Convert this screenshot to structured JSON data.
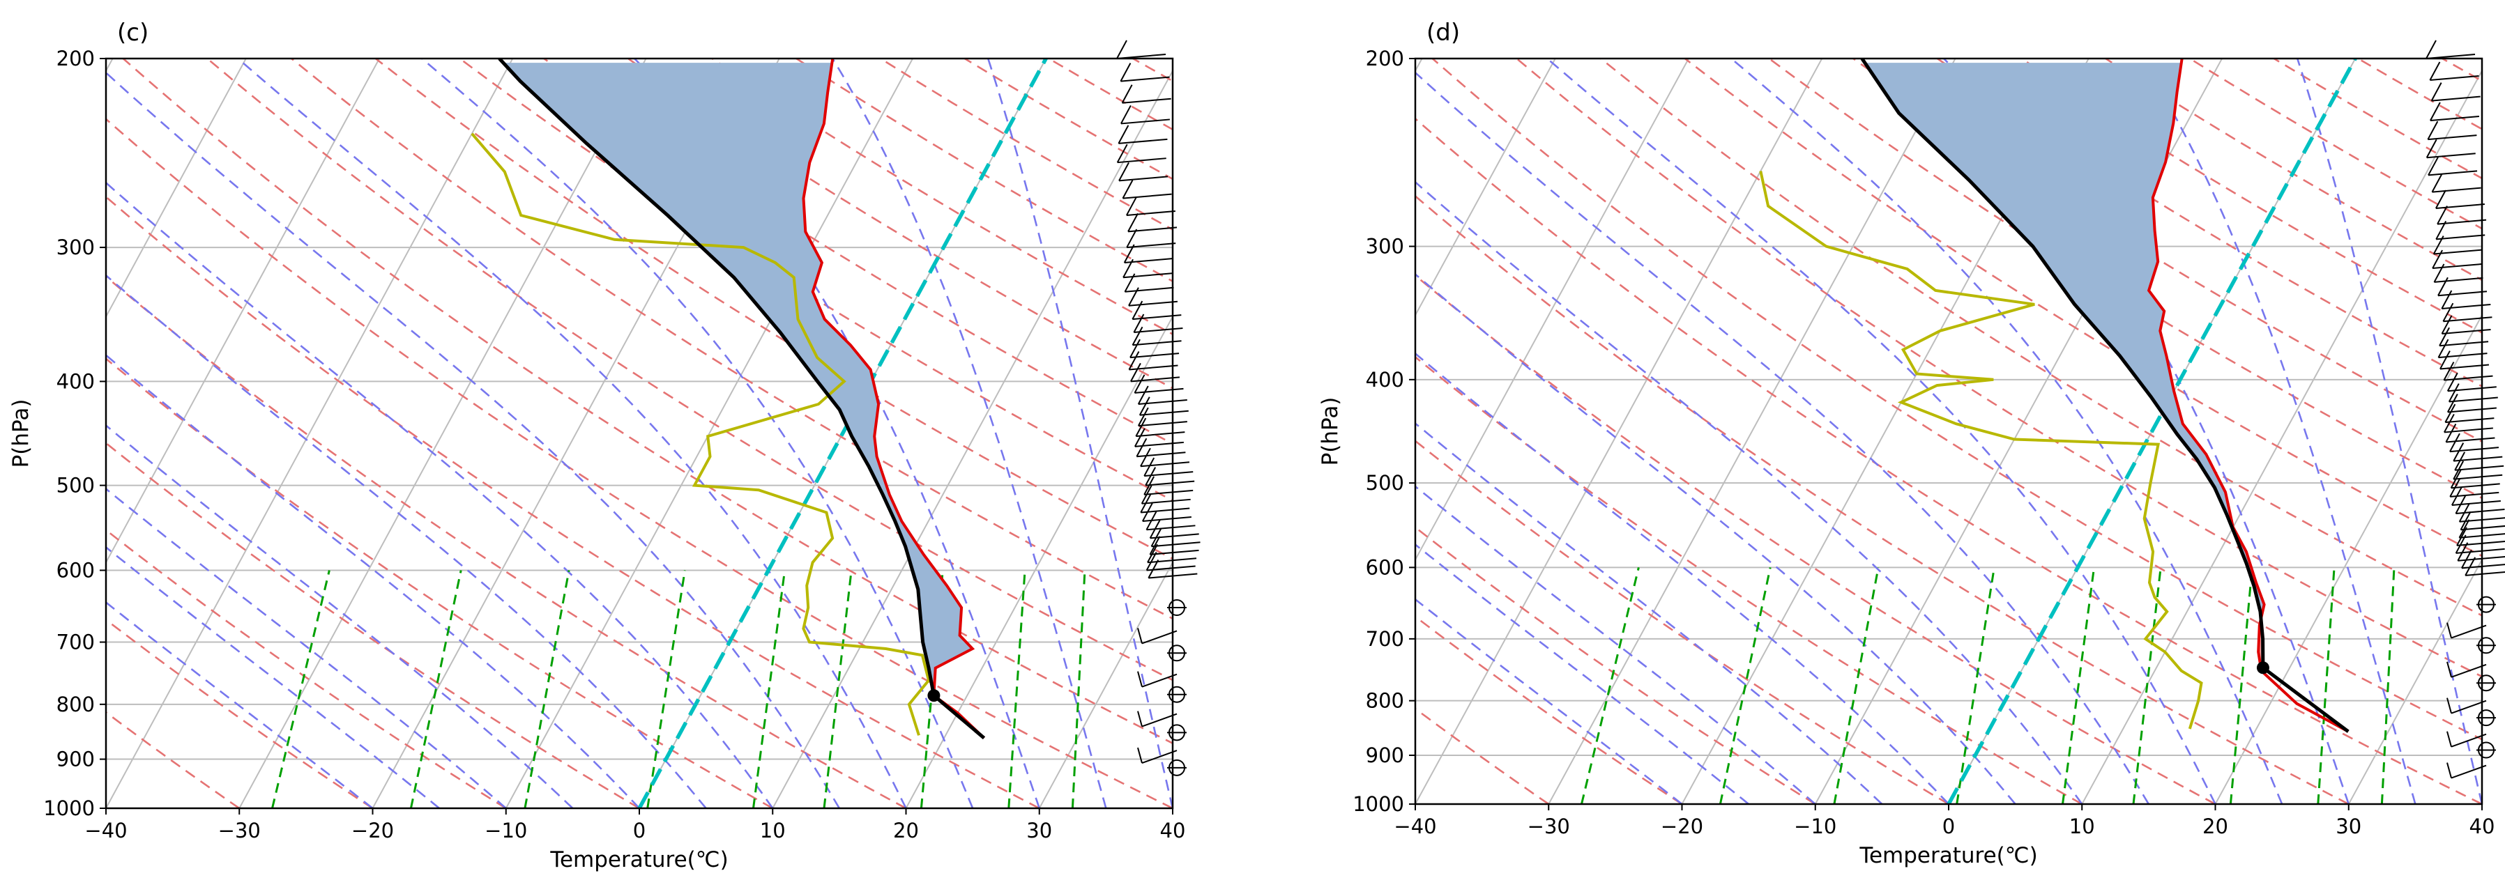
{
  "figure": {
    "type": "skew-T log-P diagram pair"
  },
  "chart_data": [
    {
      "type": "line",
      "panel_label": "(c)",
      "xlabel": "Temperature(℃)",
      "ylabel": "P(hPa)",
      "xlim": [
        -40,
        40
      ],
      "ylim": [
        1000,
        200
      ],
      "xticks": [
        -40,
        -30,
        -20,
        -10,
        0,
        10,
        20,
        30,
        40
      ],
      "yticks": [
        1000,
        900,
        800,
        700,
        600,
        500,
        400,
        300,
        200
      ],
      "colors": {
        "temperature": "#e00000",
        "dewpoint": "#b8b800",
        "parcel": "#000000",
        "freezing": "#00c0c0",
        "dry_adiabat": "#e57373",
        "moist_adiabat": "#7777ee",
        "mixing_ratio": "#00a000",
        "cape": "#f4a0a0",
        "cin": "#9ab6d6"
      },
      "series": [
        {
          "name": "temperature",
          "points": [
            [
              23,
              860
            ],
            [
              20,
              815
            ],
            [
              17.5,
              785
            ],
            [
              16.5,
              740
            ],
            [
              18.5,
              710
            ],
            [
              17,
              690
            ],
            [
              16,
              650
            ],
            [
              14,
              620
            ],
            [
              11,
              580
            ],
            [
              8,
              540
            ],
            [
              6,
              510
            ],
            [
              3.5,
              470
            ],
            [
              2.5,
              450
            ],
            [
              1.5,
              420
            ],
            [
              -0.5,
              390
            ],
            [
              -3,
              370
            ],
            [
              -6,
              350
            ],
            [
              -8,
              330
            ],
            [
              -8.5,
              310
            ],
            [
              -11,
              290
            ],
            [
              -12.5,
              270
            ],
            [
              -13.5,
              250
            ],
            [
              -14,
              230
            ],
            [
              -15,
              215
            ],
            [
              -16,
              200
            ]
          ]
        },
        {
          "name": "dewpoint",
          "points": [
            [
              18,
              855
            ],
            [
              16,
              800
            ],
            [
              16.5,
              760
            ],
            [
              15,
              720
            ],
            [
              12,
              710
            ],
            [
              6,
              700
            ],
            [
              5,
              680
            ],
            [
              4.5,
              650
            ],
            [
              3.5,
              620
            ],
            [
              3,
              590
            ],
            [
              3.5,
              560
            ],
            [
              2,
              530
            ],
            [
              -4,
              505
            ],
            [
              -9,
              500
            ],
            [
              -9,
              470
            ],
            [
              -10,
              450
            ],
            [
              -3,
              420
            ],
            [
              -2,
              400
            ],
            [
              -5,
              380
            ],
            [
              -8,
              350
            ],
            [
              -10,
              320
            ],
            [
              -12,
              310
            ],
            [
              -15,
              300
            ],
            [
              -25,
              295
            ],
            [
              -33,
              280
            ],
            [
              -36,
              255
            ],
            [
              -40,
              235
            ]
          ]
        },
        {
          "name": "parcel",
          "points": [
            [
              23,
              860
            ],
            [
              17.5,
              785
            ],
            [
              16,
              740
            ],
            [
              14.5,
              700
            ],
            [
              13.2,
              660
            ],
            [
              12,
              625
            ],
            [
              10.8,
              600
            ],
            [
              9.3,
              570
            ],
            [
              7.5,
              540
            ],
            [
              5.5,
              510
            ],
            [
              3.3,
              480
            ],
            [
              0.8,
              450
            ],
            [
              -1.2,
              425
            ],
            [
              -4,
              400
            ],
            [
              -8.8,
              360
            ],
            [
              -14.5,
              320
            ],
            [
              -22,
              280
            ],
            [
              -31,
              240
            ],
            [
              -38.5,
              210
            ],
            [
              -41,
              200
            ]
          ]
        },
        {
          "name": "lcl",
          "points": [
            [
              17.5,
              785
            ]
          ]
        }
      ],
      "barbs": {
        "upper_count": 42,
        "lower_count": 9
      }
    },
    {
      "type": "line",
      "panel_label": "(d)",
      "xlabel": "Temperature(℃)",
      "ylabel": "P(hPa)",
      "xlim": [
        -40,
        40
      ],
      "ylim": [
        1000,
        200
      ],
      "xticks": [
        -40,
        -30,
        -20,
        -10,
        0,
        10,
        20,
        30,
        40
      ],
      "yticks": [
        1000,
        900,
        800,
        700,
        600,
        500,
        400,
        300,
        200
      ],
      "colors": {
        "temperature": "#e00000",
        "dewpoint": "#b8b800",
        "parcel": "#000000",
        "freezing": "#00c0c0",
        "dry_adiabat": "#e57373",
        "moist_adiabat": "#7777ee",
        "mixing_ratio": "#00a000",
        "cape": "#f4a0a0",
        "cin": "#9ab6d6"
      },
      "series": [
        {
          "name": "temperature",
          "points": [
            [
              27,
              855
            ],
            [
              22,
              805
            ],
            [
              18,
              750
            ],
            [
              17,
              720
            ],
            [
              16,
              680
            ],
            [
              15.5,
              650
            ],
            [
              14,
              620
            ],
            [
              12,
              580
            ],
            [
              10,
              550
            ],
            [
              8,
              510
            ],
            [
              5,
              470
            ],
            [
              2,
              440
            ],
            [
              0,
              410
            ],
            [
              -2,
              380
            ],
            [
              -3.5,
              360
            ],
            [
              -4,
              345
            ],
            [
              -6,
              330
            ],
            [
              -6.5,
              310
            ],
            [
              -8,
              290
            ],
            [
              -9.5,
              270
            ],
            [
              -10,
              250
            ],
            [
              -11,
              230
            ],
            [
              -12,
              215
            ],
            [
              -13,
              200
            ]
          ]
        },
        {
          "name": "dewpoint",
          "points": [
            [
              15,
              850
            ],
            [
              14.5,
              800
            ],
            [
              14,
              770
            ],
            [
              12,
              750
            ],
            [
              10,
              720
            ],
            [
              8,
              700
            ],
            [
              8.5,
              660
            ],
            [
              7,
              640
            ],
            [
              6,
              620
            ],
            [
              5,
              580
            ],
            [
              3,
              540
            ],
            [
              2,
              500
            ],
            [
              1,
              460
            ],
            [
              -10,
              455
            ],
            [
              -15,
              440
            ],
            [
              -20,
              420
            ],
            [
              -18,
              405
            ],
            [
              -14,
              400
            ],
            [
              -20,
              395
            ],
            [
              -22,
              375
            ],
            [
              -20,
              360
            ],
            [
              -14,
              340
            ],
            [
              -22,
              330
            ],
            [
              -25,
              315
            ],
            [
              -32,
              300
            ],
            [
              -38,
              275
            ],
            [
              -40,
              255
            ]
          ]
        },
        {
          "name": "parcel",
          "points": [
            [
              27,
              855
            ],
            [
              18,
              745
            ],
            [
              16.8,
              700
            ],
            [
              15.5,
              660
            ],
            [
              14,
              625
            ],
            [
              12.5,
              595
            ],
            [
              10.8,
              565
            ],
            [
              9,
              535
            ],
            [
              7,
              505
            ],
            [
              4.5,
              475
            ],
            [
              2,
              450
            ],
            [
              -1.5,
              415
            ],
            [
              -5.5,
              380
            ],
            [
              -11,
              340
            ],
            [
              -16.5,
              300
            ],
            [
              -24,
              260
            ],
            [
              -32,
              225
            ],
            [
              -37,
              200
            ]
          ]
        },
        {
          "name": "lcl",
          "points": [
            [
              18,
              745
            ]
          ]
        }
      ],
      "barbs": {
        "upper_count": 44,
        "lower_count": 10
      }
    }
  ]
}
